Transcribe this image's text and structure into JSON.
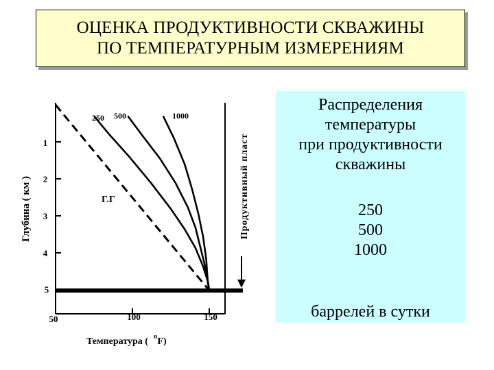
{
  "title": {
    "line1": "ОЦЕНКА ПРОДУКТИВНОСТИ СКВАЖИНЫ",
    "line2": "ПО ТЕМПЕРАТУРНЫМ ИЗМЕРЕНИЯМ"
  },
  "info_panel": {
    "heading": [
      "Распределения",
      "температуры",
      "при продуктивности",
      "скважины"
    ],
    "values": [
      "250",
      "500",
      "1000"
    ],
    "unit": "баррелей в сутки"
  },
  "chart": {
    "y_axis_label": "Глубина  ( км )",
    "x_axis_label_prefix": "Температура  (",
    "x_axis_label_degree": "o",
    "x_axis_label_suffix": "F)",
    "layer_label": "Продуктивный пласт",
    "geotherm_label": "Г.Г",
    "x_ticks": [
      "50",
      "100",
      "150"
    ],
    "y_ticks": [
      "1",
      "2",
      "3",
      "4",
      "5"
    ],
    "curve_labels": [
      "250",
      "500",
      "1000"
    ]
  },
  "chart_data": {
    "type": "line",
    "xlabel": "Температура (°F)",
    "ylabel": "Глубина (км)",
    "xlim": [
      50,
      150
    ],
    "ylim": [
      0,
      5
    ],
    "y_inverted": true,
    "layer_depth_km": 5,
    "series": [
      {
        "name": "Г.Г",
        "style": "dashed",
        "x": [
          50,
          150
        ],
        "y": [
          0,
          5
        ]
      },
      {
        "name": "250",
        "style": "solid",
        "x": [
          75,
          85,
          98,
          112,
          125,
          134,
          141,
          146,
          149
        ],
        "y": [
          0.3,
          0.8,
          1.4,
          2.1,
          2.8,
          3.35,
          3.85,
          4.35,
          4.75
        ]
      },
      {
        "name": "500",
        "style": "solid",
        "x": [
          97,
          106,
          118,
          128,
          136,
          141,
          144,
          147,
          149
        ],
        "y": [
          0.3,
          0.8,
          1.45,
          2.1,
          2.75,
          3.3,
          3.8,
          4.3,
          4.75
        ]
      },
      {
        "name": "1000",
        "style": "solid",
        "x": [
          120,
          127,
          134,
          139,
          143,
          146,
          148,
          149
        ],
        "y": [
          0.3,
          0.9,
          1.6,
          2.3,
          2.95,
          3.55,
          4.15,
          4.75
        ]
      }
    ]
  }
}
